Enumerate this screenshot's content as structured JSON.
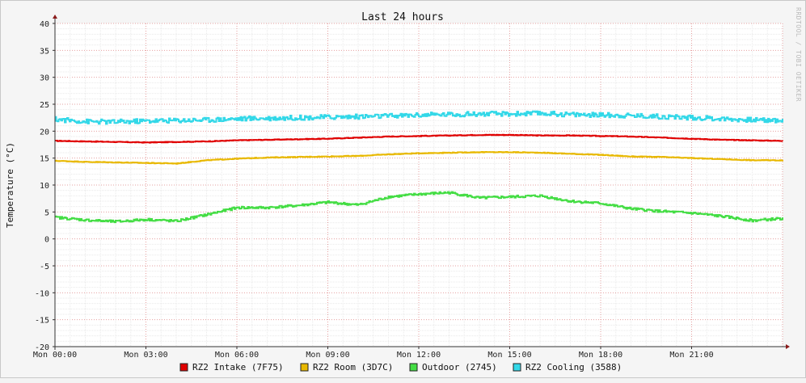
{
  "chart_data": {
    "type": "line",
    "title": "Last 24 hours",
    "ylabel": "Temperature (°C)",
    "xlabel": "",
    "ylim": [
      -20,
      40
    ],
    "y_ticks": [
      40,
      35,
      30,
      25,
      20,
      15,
      10,
      5,
      0,
      -5,
      -10,
      -15,
      -20
    ],
    "x_range_hours": [
      0,
      24
    ],
    "x_ticks": [
      {
        "h": 0,
        "label": "Mon 00:00"
      },
      {
        "h": 3,
        "label": "Mon 03:00"
      },
      {
        "h": 6,
        "label": "Mon 06:00"
      },
      {
        "h": 9,
        "label": "Mon 09:00"
      },
      {
        "h": 12,
        "label": "Mon 12:00"
      },
      {
        "h": 15,
        "label": "Mon 15:00"
      },
      {
        "h": 18,
        "label": "Mon 18:00"
      },
      {
        "h": 21,
        "label": "Mon 21:00"
      }
    ],
    "grid": true,
    "legend_position": "bottom",
    "watermark": "RRDTOOL / TOBI OETIKER",
    "series": [
      {
        "name": "RZ2 Intake (7F75)",
        "color": "#e00000",
        "x": [
          0,
          1,
          2,
          3,
          4,
          5,
          6,
          7,
          8,
          9,
          10,
          11,
          12,
          13,
          14,
          15,
          16,
          17,
          18,
          19,
          20,
          21,
          22,
          23,
          24
        ],
        "y": [
          18.2,
          18.1,
          18.0,
          17.9,
          18.0,
          18.1,
          18.3,
          18.4,
          18.5,
          18.6,
          18.8,
          19.0,
          19.1,
          19.2,
          19.3,
          19.3,
          19.2,
          19.2,
          19.1,
          19.0,
          18.8,
          18.6,
          18.4,
          18.3,
          18.2
        ]
      },
      {
        "name": "RZ2 Room (3D7C)",
        "color": "#e8b800",
        "x": [
          0,
          1,
          2,
          3,
          4,
          5,
          6,
          7,
          8,
          9,
          10,
          11,
          12,
          13,
          14,
          15,
          16,
          17,
          18,
          19,
          20,
          21,
          22,
          23,
          24
        ],
        "y": [
          14.5,
          14.3,
          14.2,
          14.1,
          14.0,
          14.6,
          14.9,
          15.1,
          15.2,
          15.3,
          15.4,
          15.7,
          15.9,
          16.0,
          16.1,
          16.1,
          16.0,
          15.8,
          15.6,
          15.3,
          15.2,
          15.0,
          14.8,
          14.6,
          14.6
        ]
      },
      {
        "name": "Outdoor (2745)",
        "color": "#44dd44",
        "x": [
          0,
          1,
          2,
          3,
          4,
          5,
          6,
          7,
          8,
          9,
          10,
          11,
          12,
          13,
          14,
          15,
          16,
          17,
          18,
          19,
          20,
          21,
          22,
          23,
          24
        ],
        "y": [
          4.0,
          3.5,
          3.2,
          3.6,
          3.3,
          4.5,
          5.8,
          5.8,
          6.2,
          6.8,
          6.3,
          7.8,
          8.3,
          8.6,
          7.6,
          7.8,
          8.0,
          7.0,
          6.6,
          5.6,
          5.1,
          4.8,
          4.2,
          3.4,
          3.8
        ]
      },
      {
        "name": "RZ2 Cooling (3588)",
        "color": "#33d8e8",
        "x": [
          0,
          1,
          2,
          3,
          4,
          5,
          6,
          7,
          8,
          9,
          10,
          11,
          12,
          13,
          14,
          15,
          16,
          17,
          18,
          19,
          20,
          21,
          22,
          23,
          24
        ],
        "y": [
          22.2,
          21.8,
          21.7,
          21.9,
          22.0,
          22.1,
          22.3,
          22.4,
          22.5,
          22.6,
          22.7,
          22.8,
          23.0,
          23.1,
          23.2,
          23.2,
          23.3,
          23.1,
          23.0,
          22.9,
          22.7,
          22.5,
          22.3,
          22.1,
          22.0
        ]
      }
    ]
  }
}
